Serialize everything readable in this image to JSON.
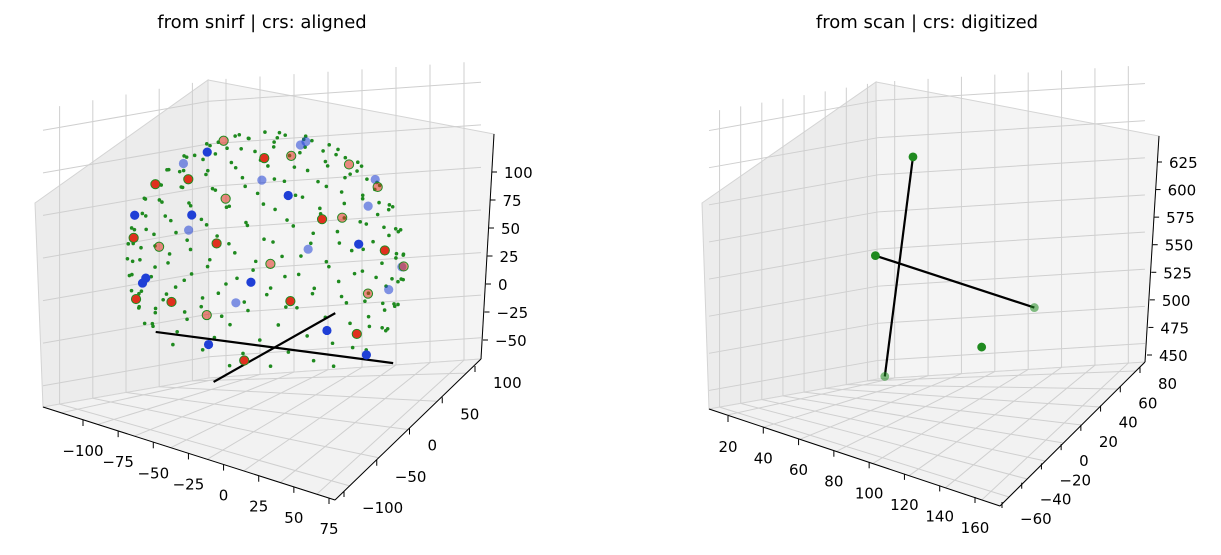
{
  "chart_data": [
    {
      "type": "scatter",
      "title": "from snirf | crs: aligned",
      "x_ticks": [
        "−100",
        "−75",
        "−50",
        "−25",
        "0",
        "25",
        "50",
        "75"
      ],
      "y_ticks": [
        "−100",
        "−50",
        "0",
        "50",
        "100"
      ],
      "z_ticks": [
        "−50",
        "−25",
        "0",
        "25",
        "50",
        "75",
        "100"
      ],
      "xlim": [
        -100,
        90
      ],
      "ylim": [
        -115,
        115
      ],
      "zlim": [
        -70,
        115
      ],
      "grid": true,
      "series": [
        {
          "color": "#1f3fd6",
          "marker": "circle",
          "size": "medium",
          "count": 28
        },
        {
          "color": "#e0301e",
          "marker": "circle",
          "size": "medium",
          "count": 30
        },
        {
          "color": "#1f8a1f",
          "marker": "dot",
          "size": "small",
          "count": 300
        }
      ],
      "lines": [
        {
          "color": "#000000",
          "from": [
            -80,
            0,
            -30
          ],
          "to": [
            80,
            0,
            -30
          ]
        },
        {
          "color": "#000000",
          "from": [
            0,
            -90,
            -30
          ],
          "to": [
            0,
            90,
            -30
          ]
        }
      ]
    },
    {
      "type": "scatter",
      "title": "from scan | crs: digitized",
      "x_ticks": [
        "20",
        "40",
        "60",
        "80",
        "100",
        "120",
        "140",
        "160"
      ],
      "y_ticks": [
        "−60",
        "−40",
        "−20",
        "0",
        "20",
        "40",
        "60",
        "80"
      ],
      "z_ticks": [
        "450",
        "475",
        "500",
        "525",
        "550",
        "575",
        "600",
        "625"
      ],
      "xlim": [
        10,
        165
      ],
      "ylim": [
        -65,
        85
      ],
      "zlim": [
        440,
        630
      ],
      "grid": true,
      "series": [
        {
          "color": "#1f8a1f",
          "marker": "circle",
          "size": "medium",
          "points": [
            [
              15,
              75,
              520
            ],
            [
              160,
              -20,
              538
            ],
            [
              88,
              -10,
              612
            ],
            [
              30,
              60,
              445
            ],
            [
              150,
              -55,
              530
            ]
          ]
        }
      ],
      "lines": [
        {
          "color": "#000000",
          "from": [
            15,
            75,
            520
          ],
          "to": [
            160,
            -20,
            538
          ]
        },
        {
          "color": "#000000",
          "from": [
            30,
            60,
            445
          ],
          "to": [
            88,
            -10,
            612
          ]
        }
      ]
    }
  ]
}
